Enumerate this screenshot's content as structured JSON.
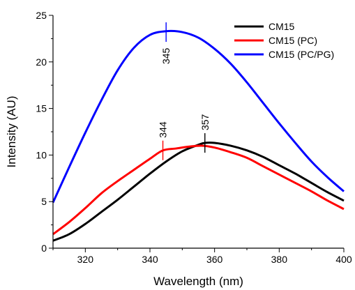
{
  "chart_data": {
    "type": "line",
    "title": "",
    "xlabel": "Wavelength (nm)",
    "ylabel": "Intensity (AU)",
    "xlim": [
      310,
      400
    ],
    "ylim": [
      0,
      25
    ],
    "xticks": [
      320,
      340,
      360,
      380,
      400
    ],
    "yticks": [
      0,
      5,
      10,
      15,
      20,
      25
    ],
    "x_tick_labels": [
      "320",
      "340",
      "360",
      "380",
      "400"
    ],
    "y_tick_labels": [
      "0",
      "5",
      "10",
      "15",
      "20",
      "25"
    ],
    "legend_position": "top-right",
    "series": [
      {
        "name": "CM15",
        "color": "#000000",
        "points": [
          [
            310,
            0.8
          ],
          [
            315,
            1.5
          ],
          [
            320,
            2.6
          ],
          [
            325,
            3.9
          ],
          [
            330,
            5.2
          ],
          [
            335,
            6.6
          ],
          [
            340,
            8.0
          ],
          [
            345,
            9.3
          ],
          [
            350,
            10.4
          ],
          [
            355,
            11.1
          ],
          [
            357,
            11.3
          ],
          [
            360,
            11.3
          ],
          [
            365,
            11.0
          ],
          [
            370,
            10.5
          ],
          [
            375,
            9.8
          ],
          [
            380,
            8.9
          ],
          [
            385,
            8.0
          ],
          [
            390,
            7.0
          ],
          [
            395,
            6.0
          ],
          [
            400,
            5.1
          ]
        ]
      },
      {
        "name": "CM15 (PC)",
        "color": "#ff0000",
        "points": [
          [
            310,
            1.5
          ],
          [
            315,
            2.8
          ],
          [
            320,
            4.3
          ],
          [
            325,
            5.9
          ],
          [
            330,
            7.2
          ],
          [
            335,
            8.4
          ],
          [
            340,
            9.6
          ],
          [
            344,
            10.5
          ],
          [
            348,
            10.7
          ],
          [
            352,
            10.9
          ],
          [
            356,
            11.0
          ],
          [
            360,
            10.8
          ],
          [
            365,
            10.3
          ],
          [
            370,
            9.7
          ],
          [
            375,
            8.8
          ],
          [
            380,
            7.9
          ],
          [
            385,
            7.0
          ],
          [
            390,
            6.1
          ],
          [
            395,
            5.1
          ],
          [
            400,
            4.2
          ]
        ]
      },
      {
        "name": "CM15 (PC/PG)",
        "color": "#0000ff",
        "points": [
          [
            310,
            4.9
          ],
          [
            315,
            8.7
          ],
          [
            320,
            12.4
          ],
          [
            325,
            15.9
          ],
          [
            330,
            19.1
          ],
          [
            335,
            21.5
          ],
          [
            340,
            22.9
          ],
          [
            345,
            23.3
          ],
          [
            350,
            23.2
          ],
          [
            355,
            22.6
          ],
          [
            360,
            21.4
          ],
          [
            365,
            19.8
          ],
          [
            370,
            17.8
          ],
          [
            375,
            15.6
          ],
          [
            380,
            13.4
          ],
          [
            385,
            11.3
          ],
          [
            390,
            9.3
          ],
          [
            395,
            7.6
          ],
          [
            400,
            6.1
          ]
        ]
      }
    ],
    "peak_markers": [
      {
        "x": 345,
        "y": 23.2,
        "label": "345",
        "color": "#0000ff"
      },
      {
        "x": 344,
        "y": 10.5,
        "label": "344",
        "color": "#ff0000"
      },
      {
        "x": 357,
        "y": 11.3,
        "label": "357",
        "color": "#000000"
      }
    ]
  }
}
